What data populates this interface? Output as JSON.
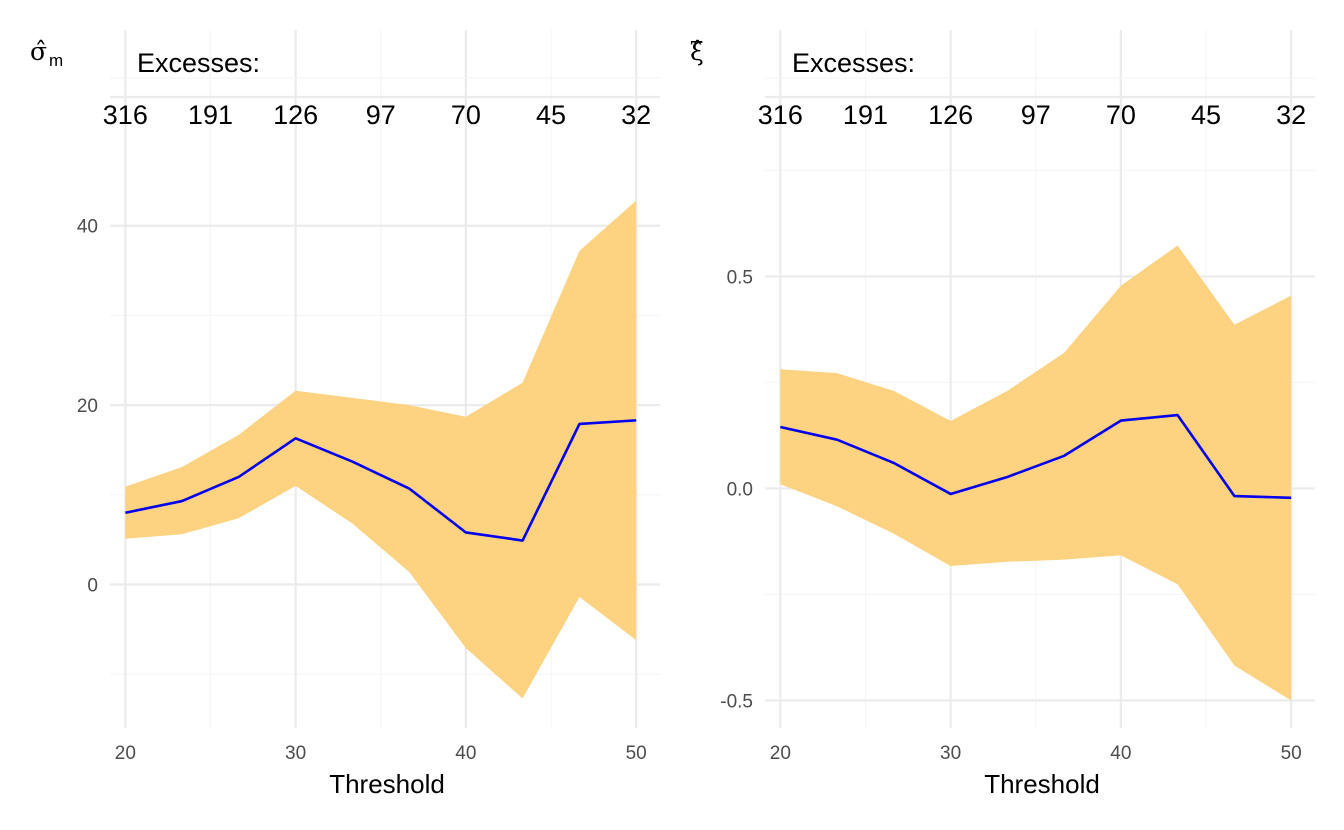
{
  "colors": {
    "band": "#FDD280",
    "line": "#0000EE",
    "grid_major": "#EBEBEB",
    "grid_minor": "#F5F5F5"
  },
  "chart_data": [
    {
      "type": "area",
      "ylabel": "σ̂",
      "ylabel_subscript": "m",
      "xlabel": "Threshold",
      "excesses_title": "Excesses:",
      "excesses_ticks": [
        {
          "threshold": 20,
          "label": "316"
        },
        {
          "threshold": 25,
          "label": "191"
        },
        {
          "threshold": 30,
          "label": "126"
        },
        {
          "threshold": 35,
          "label": "97"
        },
        {
          "threshold": 40,
          "label": "70"
        },
        {
          "threshold": 45,
          "label": "45"
        },
        {
          "threshold": 50,
          "label": "32"
        }
      ],
      "xlim": [
        19.1,
        51.4
      ],
      "ylim": [
        -16,
        49
      ],
      "x_ticks": [
        20,
        30,
        40,
        50
      ],
      "y_ticks": [
        0,
        20,
        40
      ],
      "y_minor": [
        -10,
        10,
        30
      ],
      "x_minor": [
        25,
        35,
        45
      ],
      "x": [
        20,
        23.33,
        26.67,
        30,
        33.33,
        36.67,
        40,
        43.33,
        46.67,
        50
      ],
      "estimate": [
        8.0,
        9.3,
        12.0,
        16.3,
        13.7,
        10.7,
        5.8,
        4.9,
        17.9,
        18.3
      ],
      "lower": [
        5.1,
        5.6,
        7.4,
        11.0,
        6.8,
        1.4,
        -7.1,
        -12.7,
        -1.4,
        -6.2
      ],
      "upper": [
        10.9,
        13.1,
        16.7,
        21.6,
        20.8,
        20.0,
        18.7,
        22.5,
        37.2,
        42.8
      ]
    },
    {
      "type": "area",
      "ylabel": "ξ̂",
      "ylabel_subscript": "",
      "xlabel": "Threshold",
      "excesses_title": "Excesses:",
      "excesses_ticks": [
        {
          "threshold": 20,
          "label": "316"
        },
        {
          "threshold": 25,
          "label": "191"
        },
        {
          "threshold": 30,
          "label": "126"
        },
        {
          "threshold": 35,
          "label": "97"
        },
        {
          "threshold": 40,
          "label": "70"
        },
        {
          "threshold": 45,
          "label": "45"
        },
        {
          "threshold": 50,
          "label": "32"
        }
      ],
      "xlim": [
        19.1,
        51.4
      ],
      "ylim": [
        -0.565,
        0.81
      ],
      "x_ticks": [
        20,
        30,
        40,
        50
      ],
      "y_ticks": [
        -0.5,
        0.0,
        0.5
      ],
      "y_minor": [
        -0.25,
        0.25,
        0.75
      ],
      "x_minor": [
        25,
        35,
        45
      ],
      "x": [
        20,
        23.33,
        26.67,
        30,
        33.33,
        36.67,
        40,
        43.33,
        46.67,
        50
      ],
      "estimate": [
        0.145,
        0.115,
        0.06,
        -0.013,
        0.027,
        0.077,
        0.16,
        0.173,
        -0.018,
        -0.022
      ],
      "lower": [
        0.01,
        -0.042,
        -0.107,
        -0.183,
        -0.173,
        -0.168,
        -0.158,
        -0.226,
        -0.418,
        -0.5
      ],
      "upper": [
        0.281,
        0.272,
        0.23,
        0.159,
        0.23,
        0.32,
        0.478,
        0.573,
        0.386,
        0.455
      ]
    }
  ]
}
